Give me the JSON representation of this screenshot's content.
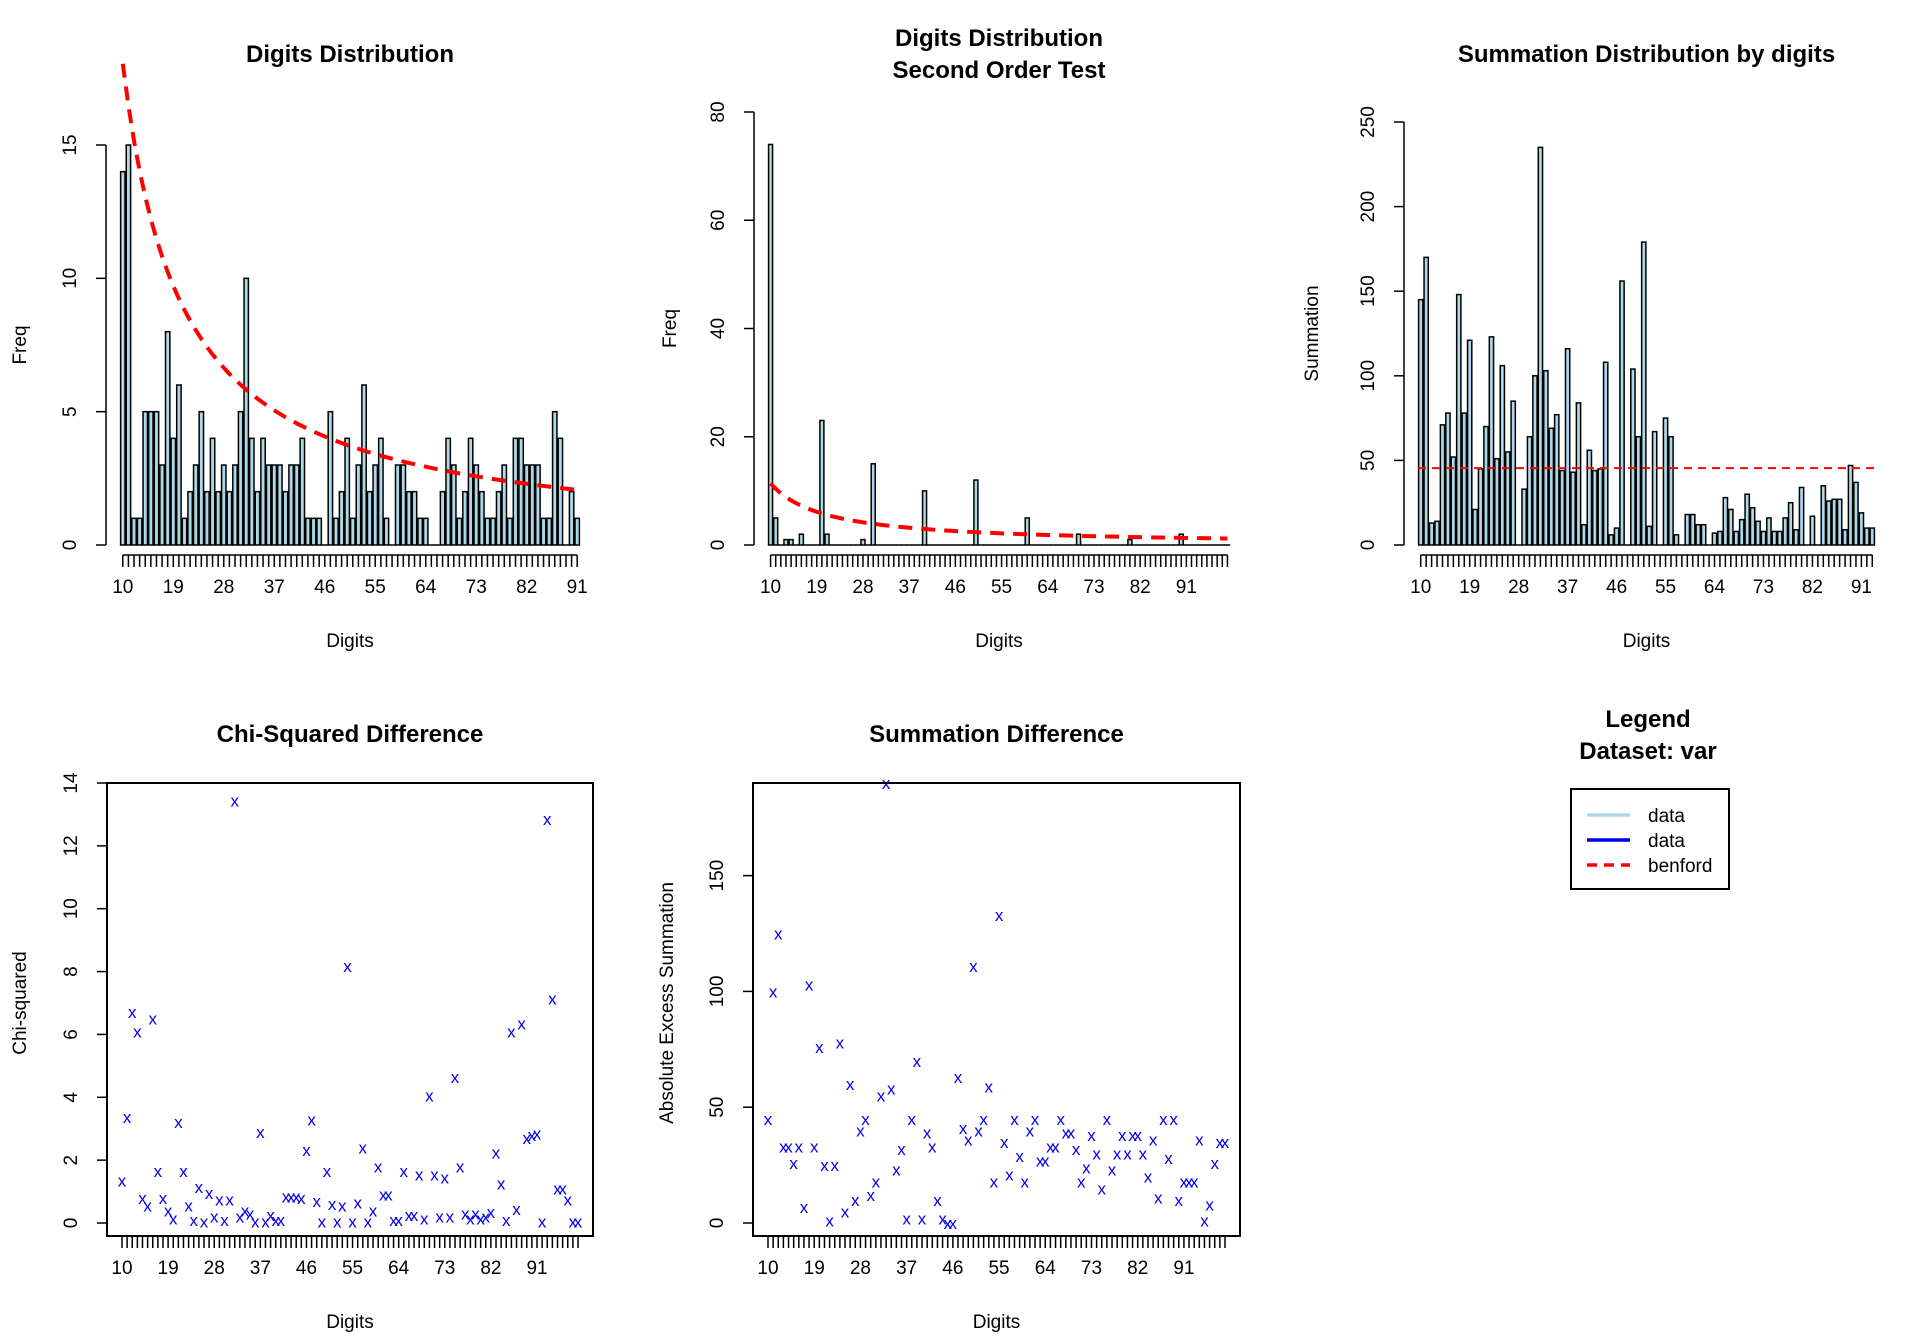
{
  "chart_data": [
    {
      "id": "digits",
      "type": "bar",
      "title": [
        "Digits Distribution"
      ],
      "xlabel": "Digits",
      "ylabel": "Freq",
      "ylim": [
        0,
        15
      ],
      "yticks": [
        0,
        5,
        10,
        15
      ],
      "xtick_labels": [
        "10",
        "19",
        "28",
        "37",
        "46",
        "55",
        "64",
        "73",
        "82",
        "91"
      ],
      "xtick_values": [
        10,
        19,
        28,
        37,
        46,
        55,
        64,
        73,
        82,
        91
      ],
      "grid": false,
      "box": false,
      "bar_fill": "#add8e6",
      "digits_start": 10,
      "values": [
        14,
        15,
        1,
        1,
        5,
        5,
        5,
        3,
        8,
        4,
        6,
        1,
        2,
        3,
        5,
        2,
        4,
        2,
        3,
        2,
        3,
        5,
        10,
        4,
        2,
        4,
        3,
        3,
        3,
        2,
        3,
        3,
        4,
        1,
        1,
        1,
        0,
        5,
        1,
        2,
        4,
        1,
        3,
        6,
        2,
        3,
        4,
        1,
        0,
        3,
        3,
        2,
        2,
        1,
        1,
        0,
        0,
        2,
        4,
        3,
        1,
        2,
        4,
        3,
        2,
        1,
        1,
        2,
        3,
        1,
        4,
        4,
        3,
        3,
        3,
        1,
        1,
        5,
        4,
        0,
        2,
        1
      ],
      "benford": {
        "color": "#ff0000",
        "dashed": true,
        "scale": 436
      }
    },
    {
      "id": "second",
      "type": "bar",
      "title": [
        "Digits Distribution",
        "Second Order Test"
      ],
      "xlabel": "Digits",
      "ylabel": "Freq",
      "ylim": [
        0,
        80
      ],
      "yticks": [
        0,
        20,
        40,
        60,
        80
      ],
      "xtick_labels": [
        "10",
        "19",
        "28",
        "37",
        "46",
        "55",
        "64",
        "73",
        "82",
        "91"
      ],
      "xtick_values": [
        10,
        19,
        28,
        37,
        46,
        55,
        64,
        73,
        82,
        91
      ],
      "grid": false,
      "box": false,
      "bar_fill": "#add8e6",
      "digits_start": 10,
      "values": [
        74,
        5,
        0,
        1,
        1,
        0,
        2,
        0,
        0,
        0,
        23,
        2,
        0,
        0,
        0,
        0,
        0,
        0,
        1,
        0,
        15,
        0,
        0,
        0,
        0,
        0,
        0,
        0,
        0,
        0,
        10,
        0,
        0,
        0,
        0,
        0,
        0,
        0,
        0,
        0,
        12,
        0,
        0,
        0,
        0,
        0,
        0,
        0,
        0,
        0,
        5,
        0,
        0,
        0,
        0,
        0,
        0,
        0,
        0,
        0,
        2,
        0,
        0,
        0,
        0,
        0,
        0,
        0,
        0,
        0,
        1,
        0,
        0,
        0,
        0,
        0,
        0,
        0,
        0,
        0,
        2,
        0,
        0,
        0,
        0,
        0,
        0,
        0,
        0,
        0
      ],
      "benford": {
        "color": "#ff0000",
        "dashed": true,
        "scale": 275
      }
    },
    {
      "id": "summation",
      "type": "bar",
      "title": [
        "Summation Distribution by digits"
      ],
      "xlabel": "Digits",
      "ylabel": "Summation",
      "ylim": [
        0,
        250
      ],
      "yticks": [
        0,
        50,
        100,
        150,
        200,
        250
      ],
      "xtick_labels": [
        "10",
        "19",
        "28",
        "37",
        "46",
        "55",
        "64",
        "73",
        "82",
        "91"
      ],
      "xtick_values": [
        10,
        19,
        28,
        37,
        46,
        55,
        64,
        73,
        82,
        91
      ],
      "grid": false,
      "box": false,
      "bar_fill": "#add8e6",
      "digits_start": 10,
      "values": [
        145,
        170,
        13,
        14,
        71,
        78,
        52,
        148,
        78,
        121,
        21,
        45,
        70,
        123,
        51,
        106,
        55,
        85,
        0,
        33,
        64,
        100,
        235,
        103,
        69,
        77,
        44,
        116,
        43,
        84,
        12,
        56,
        44,
        45,
        108,
        6,
        10,
        156,
        0,
        104,
        64,
        179,
        11,
        67,
        0,
        75,
        64,
        6,
        0,
        18,
        18,
        12,
        12,
        0,
        7,
        8,
        28,
        21,
        8,
        15,
        30,
        22,
        14,
        8,
        16,
        8,
        8,
        16,
        25,
        9,
        34,
        0,
        17,
        0,
        35,
        26,
        27,
        27,
        9,
        47,
        37,
        19,
        10,
        10
      ],
      "reference_line": {
        "value": 45.4,
        "color": "#ff0000",
        "dashed": true
      }
    },
    {
      "id": "chisq",
      "type": "scatter",
      "title": [
        "Chi-Squared Difference"
      ],
      "xlabel": "Digits",
      "ylabel": "Chi-squared",
      "ylim": [
        0,
        14
      ],
      "yticks": [
        0,
        2,
        4,
        6,
        8,
        10,
        12,
        14
      ],
      "xtick_labels": [
        "10",
        "19",
        "28",
        "37",
        "46",
        "55",
        "64",
        "73",
        "82",
        "91"
      ],
      "xtick_values": [
        10,
        19,
        28,
        37,
        46,
        55,
        64,
        73,
        82,
        91
      ],
      "grid": false,
      "box": true,
      "marker": "x",
      "marker_color": "#0000ee",
      "digits_start": 10,
      "values": [
        1.35,
        3.38,
        6.72,
        6.1,
        0.8,
        0.55,
        6.5,
        1.65,
        0.8,
        0.4,
        0.15,
        3.22,
        1.65,
        0.55,
        0.1,
        1.15,
        0.05,
        0.95,
        0.2,
        0.75,
        0.1,
        0.75,
        13.45,
        0.2,
        0.4,
        0.3,
        0.05,
        2.9,
        0.05,
        0.25,
        0.1,
        0.1,
        0.85,
        0.85,
        0.85,
        0.8,
        2.32,
        3.3,
        0.7,
        0.05,
        1.65,
        0.6,
        0.05,
        0.55,
        8.18,
        0.05,
        0.65,
        2.4,
        0.05,
        0.4,
        1.8,
        0.9,
        0.9,
        0.1,
        0.1,
        1.65,
        0.25,
        0.25,
        1.55,
        0.15,
        4.05,
        1.55,
        0.2,
        1.45,
        0.2,
        4.65,
        1.8,
        0.3,
        0.15,
        0.3,
        0.15,
        0.2,
        0.35,
        2.25,
        1.25,
        0.1,
        6.1,
        0.45,
        6.35,
        2.7,
        2.8,
        2.85,
        0.05,
        12.85,
        7.15,
        1.1,
        1.1,
        0.75,
        0.05,
        0.05
      ]
    },
    {
      "id": "sumdiff",
      "type": "scatter",
      "title": [
        "Summation Difference"
      ],
      "xlabel": "Digits",
      "ylabel": "Absolute Excess Summation",
      "ylim": [
        0,
        190
      ],
      "yticks": [
        0,
        50,
        100,
        150
      ],
      "xtick_labels": [
        "10",
        "19",
        "28",
        "37",
        "46",
        "55",
        "64",
        "73",
        "82",
        "91"
      ],
      "xtick_values": [
        10,
        19,
        28,
        37,
        46,
        55,
        64,
        73,
        82,
        91
      ],
      "grid": false,
      "box": true,
      "marker": "x",
      "marker_color": "#0000ee",
      "digits_start": 10,
      "values": [
        45,
        100,
        125,
        33,
        33,
        26,
        33,
        7,
        103,
        33,
        76,
        25,
        1,
        25,
        78,
        5,
        60,
        10,
        40,
        45,
        12,
        18,
        55,
        190,
        58,
        23,
        32,
        2,
        45,
        70,
        2,
        39,
        33,
        10,
        2,
        0,
        0,
        63,
        41,
        36,
        111,
        40,
        45,
        59,
        18,
        133,
        35,
        21,
        45,
        29,
        18,
        40,
        45,
        27,
        27,
        33,
        33,
        45,
        39,
        39,
        32,
        18,
        24,
        38,
        30,
        15,
        45,
        23,
        30,
        38,
        30,
        38,
        38,
        30,
        20,
        36,
        11,
        45,
        28,
        45,
        10,
        18,
        18,
        18,
        36,
        1,
        8,
        26,
        35,
        35
      ]
    }
  ],
  "legend": {
    "title": [
      "Legend",
      "Dataset: var"
    ],
    "entries": [
      {
        "label": "data",
        "color": "#add8e6",
        "dashed": false
      },
      {
        "label": "data",
        "color": "#0000ee",
        "dashed": false
      },
      {
        "label": "benford",
        "color": "#ff0000",
        "dashed": true
      }
    ]
  }
}
